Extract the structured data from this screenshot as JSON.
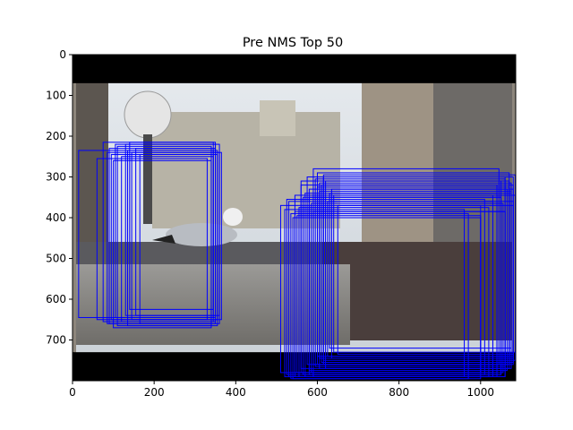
{
  "figure": {
    "title": "Pre NMS Top 50",
    "colors": {
      "box": "#0000ff",
      "letterbox": "#000000",
      "axes": "#000000",
      "background": "#ffffff"
    }
  },
  "image_axes": {
    "xlim": [
      0,
      1086
    ],
    "ylim": [
      800,
      0
    ],
    "x_ticks": [
      0,
      200,
      400,
      600,
      800,
      1000
    ],
    "y_ticks": [
      0,
      100,
      200,
      300,
      400,
      500,
      600,
      700
    ],
    "image_region": {
      "x_start": 0,
      "x_end": 1086,
      "y_start": 0,
      "y_end": 800
    },
    "letterbox_bands": [
      {
        "x0": 0,
        "x1": 1086,
        "y0": 0,
        "y1": 70
      },
      {
        "x0": 0,
        "x1": 1086,
        "y0": 730,
        "y1": 800
      }
    ],
    "scene_description_hidden": true
  },
  "boxes": [
    [
      15,
      235,
      345,
      645
    ],
    [
      75,
      215,
      350,
      655
    ],
    [
      90,
      230,
      350,
      660
    ],
    [
      100,
      260,
      340,
      670
    ],
    [
      130,
      220,
      360,
      640
    ],
    [
      140,
      215,
      345,
      625
    ],
    [
      95,
      245,
      355,
      650
    ],
    [
      110,
      225,
      340,
      665
    ],
    [
      155,
      230,
      350,
      640
    ],
    [
      85,
      240,
      360,
      660
    ],
    [
      120,
      250,
      345,
      655
    ],
    [
      60,
      255,
      330,
      650
    ],
    [
      135,
      235,
      355,
      665
    ],
    [
      105,
      220,
      350,
      645
    ],
    [
      165,
      245,
      340,
      660
    ],
    [
      145,
      240,
      365,
      650
    ],
    [
      510,
      370,
      1000,
      780
    ],
    [
      530,
      360,
      1030,
      790
    ],
    [
      545,
      385,
      1060,
      790
    ],
    [
      560,
      310,
      1050,
      770
    ],
    [
      575,
      300,
      1060,
      760
    ],
    [
      590,
      280,
      1045,
      760
    ],
    [
      600,
      290,
      1070,
      740
    ],
    [
      615,
      300,
      1080,
      760
    ],
    [
      630,
      340,
      1075,
      720
    ],
    [
      520,
      380,
      960,
      790
    ],
    [
      550,
      395,
      1000,
      780
    ],
    [
      565,
      350,
      1050,
      785
    ],
    [
      580,
      330,
      1065,
      775
    ],
    [
      605,
      315,
      1075,
      745
    ],
    [
      620,
      310,
      1070,
      770
    ],
    [
      540,
      400,
      1000,
      795
    ],
    [
      585,
      365,
      1055,
      780
    ],
    [
      610,
      320,
      1080,
      755
    ],
    [
      640,
      345,
      1085,
      730
    ],
    [
      525,
      355,
      1010,
      785
    ],
    [
      570,
      340,
      1040,
      790
    ],
    [
      595,
      305,
      1060,
      765
    ],
    [
      635,
      330,
      1080,
      745
    ],
    [
      555,
      375,
      1020,
      790
    ],
    [
      600,
      325,
      1070,
      760
    ],
    [
      625,
      360,
      1080,
      740
    ],
    [
      535,
      390,
      970,
      795
    ],
    [
      580,
      350,
      1050,
      785
    ],
    [
      615,
      295,
      1085,
      750
    ],
    [
      650,
      370,
      1080,
      735
    ],
    [
      545,
      345,
      1030,
      780
    ],
    [
      590,
      385,
      1060,
      790
    ],
    [
      605,
      335,
      1075,
      770
    ],
    [
      560,
      320,
      1040,
      780
    ]
  ]
}
